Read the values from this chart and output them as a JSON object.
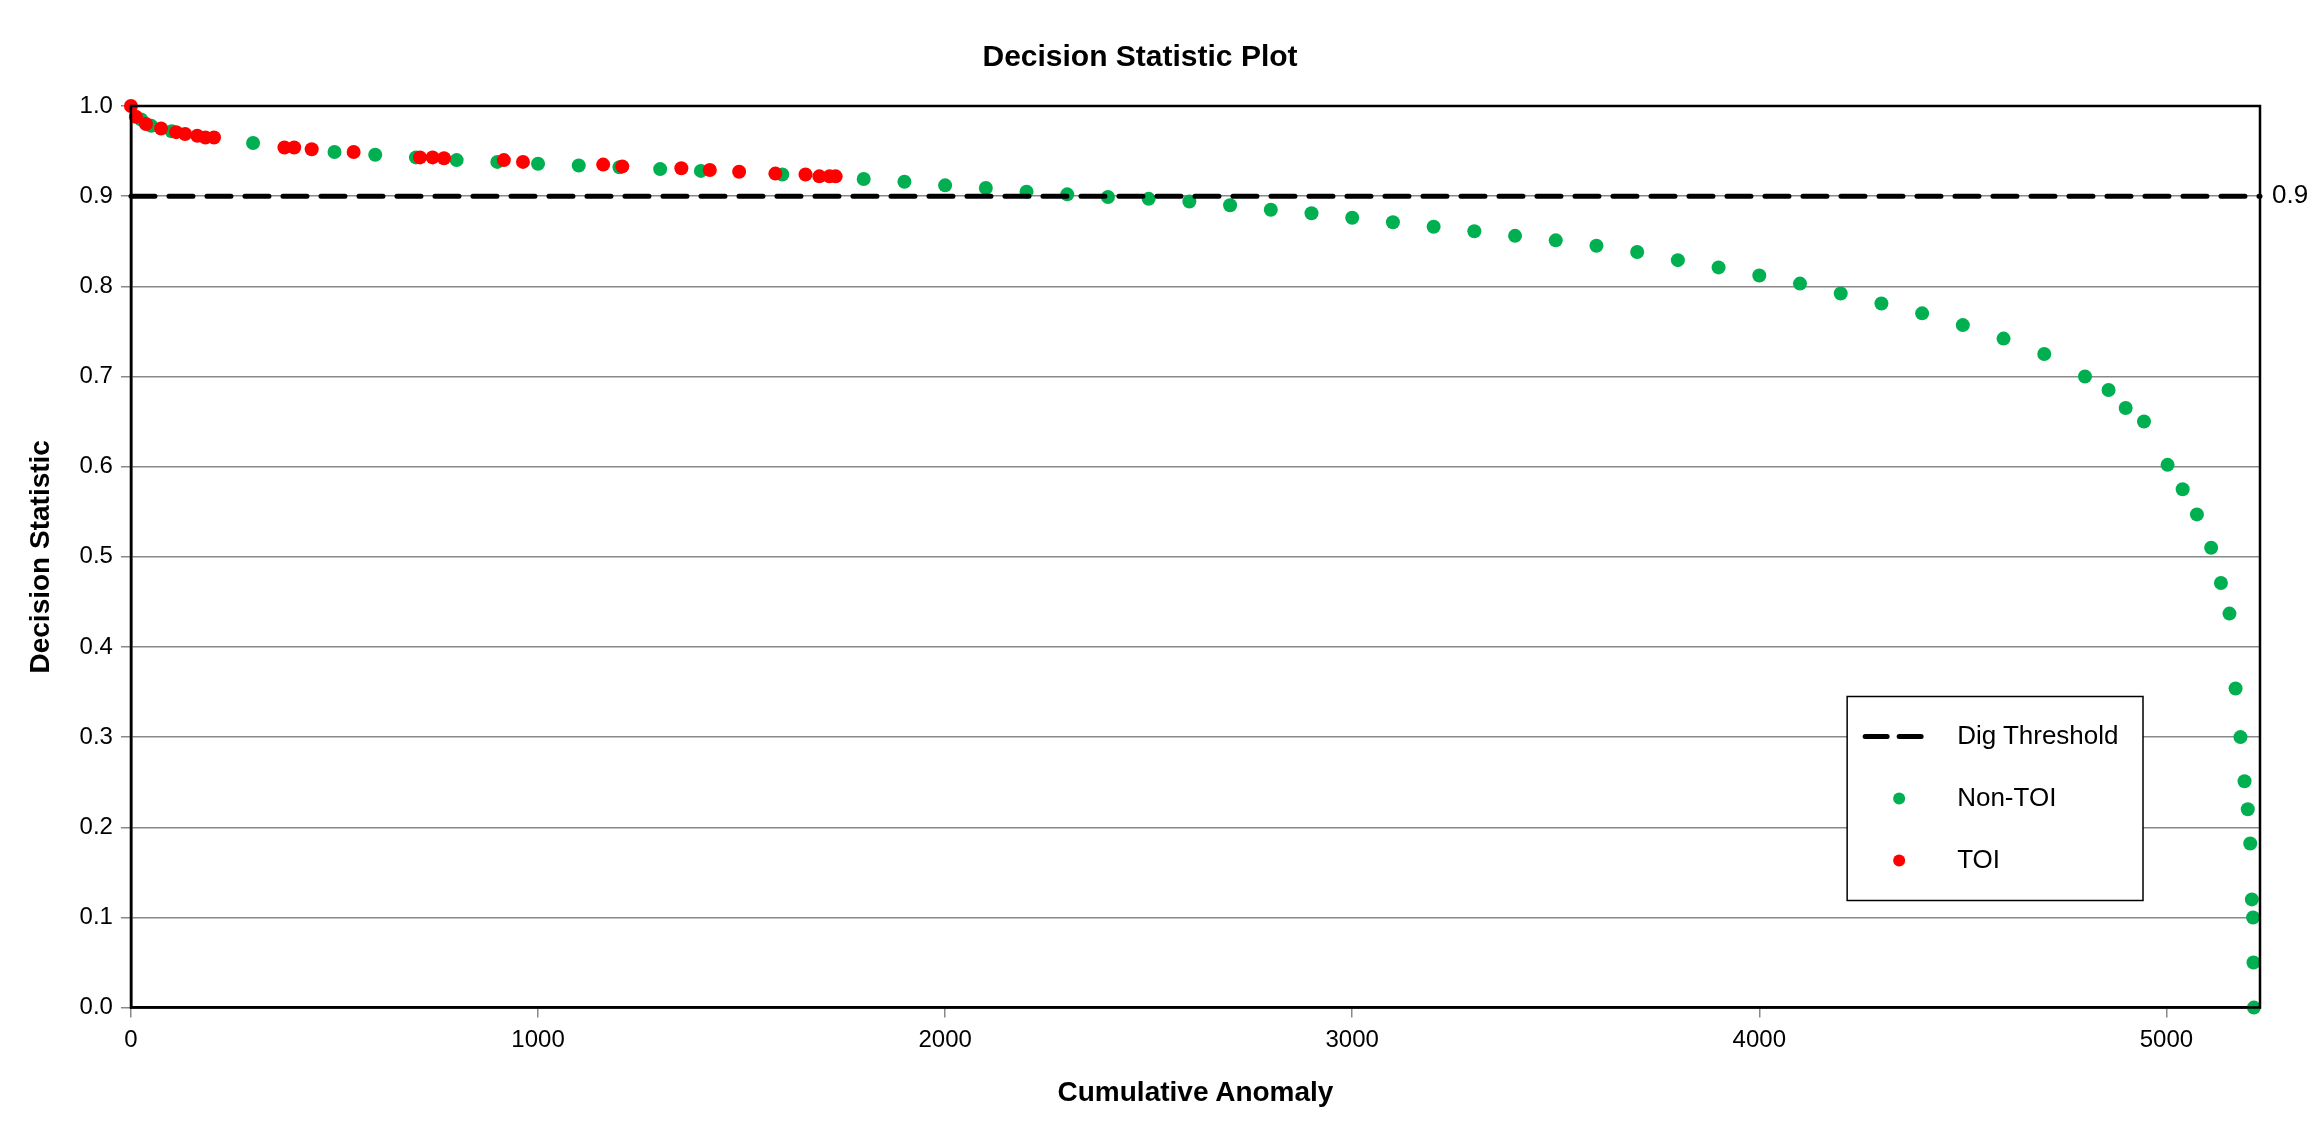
{
  "chart_data": {
    "type": "scatter",
    "title": "Decision Statistic Plot",
    "xlabel": "Cumulative Anomaly",
    "ylabel": "Decision Statistic",
    "xlim": [
      0,
      5230
    ],
    "ylim": [
      0,
      1
    ],
    "xticks": [
      0,
      1000,
      2000,
      3000,
      4000,
      5000
    ],
    "yticks": [
      {
        "value": 0,
        "label": "0.0"
      },
      {
        "value": 0.1,
        "label": "0.1"
      },
      {
        "value": 0.2,
        "label": "0.2"
      },
      {
        "value": 0.3,
        "label": "0.3"
      },
      {
        "value": 0.4,
        "label": "0.4"
      },
      {
        "value": 0.5,
        "label": "0.5"
      },
      {
        "value": 0.6,
        "label": "0.6"
      },
      {
        "value": 0.7,
        "label": "0.7"
      },
      {
        "value": 0.8,
        "label": "0.8"
      },
      {
        "value": 0.9,
        "label": "0.9"
      },
      {
        "value": 1,
        "label": "1.0"
      }
    ],
    "grid": "y",
    "legend": "bottom right",
    "marker": "circle",
    "series": [
      {
        "name": "Non-TOI",
        "color": "#00b050",
        "x": [
          25,
          50,
          100,
          300,
          500,
          600,
          700,
          800,
          900,
          1000,
          1100,
          1200,
          1300,
          1400,
          1600,
          1800,
          1900,
          2000,
          2100,
          2200,
          2300,
          2400,
          2500,
          2600,
          2700,
          2800,
          2900,
          3000,
          3100,
          3200,
          3300,
          3400,
          3500,
          3600,
          3700,
          3800,
          3900,
          4000,
          4100,
          4200,
          4300,
          4400,
          4500,
          4600,
          4700,
          4800,
          4858,
          4900,
          4945,
          5003,
          5040,
          5075,
          5110,
          5134,
          5155,
          5170,
          5182,
          5192,
          5200,
          5206,
          5210,
          5213,
          5214,
          5215
        ],
        "values": [
          0.985,
          0.978,
          0.972,
          0.959,
          0.949,
          0.946,
          0.943,
          0.94,
          0.938,
          0.936,
          0.934,
          0.932,
          0.93,
          0.928,
          0.924,
          0.919,
          0.916,
          0.912,
          0.909,
          0.905,
          0.902,
          0.899,
          0.897,
          0.894,
          0.89,
          0.885,
          0.881,
          0.876,
          0.871,
          0.866,
          0.861,
          0.856,
          0.851,
          0.845,
          0.838,
          0.829,
          0.821,
          0.812,
          0.803,
          0.792,
          0.781,
          0.77,
          0.757,
          0.742,
          0.725,
          0.7,
          0.685,
          0.665,
          0.65,
          0.602,
          0.575,
          0.547,
          0.51,
          0.471,
          0.437,
          0.354,
          0.3,
          0.251,
          0.22,
          0.182,
          0.12,
          0.1,
          0.05,
          0.0
        ]
      },
      {
        "name": "TOI",
        "color": "#ff0000",
        "x": [
          0,
          12,
          37,
          74,
          111,
          133,
          163,
          183,
          204,
          377,
          401,
          444,
          547,
          710,
          741,
          769,
          916,
          963,
          1160,
          1207,
          1352,
          1422,
          1494,
          1583,
          1657,
          1691,
          1716,
          1731
        ],
        "values": [
          1.0,
          0.988,
          0.98,
          0.975,
          0.971,
          0.969,
          0.967,
          0.965,
          0.965,
          0.954,
          0.954,
          0.952,
          0.949,
          0.943,
          0.943,
          0.942,
          0.94,
          0.938,
          0.935,
          0.933,
          0.931,
          0.929,
          0.927,
          0.925,
          0.924,
          0.922,
          0.922,
          0.922
        ]
      }
    ],
    "ref_lines": [
      {
        "axis": "y",
        "value": 0.9,
        "label": "Dig Threshold",
        "color": "#000000",
        "line_style": "dashed"
      }
    ],
    "annotations": [
      {
        "text": "0.9",
        "x": 5230,
        "y": 0.9
      }
    ]
  }
}
